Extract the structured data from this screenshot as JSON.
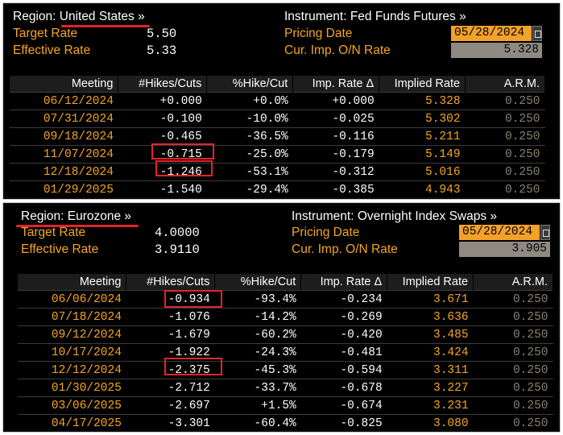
{
  "panels": [
    {
      "region_label": "Region:",
      "region_value": "United States",
      "region_chevron": "»",
      "instrument_label": "Instrument:",
      "instrument_value": "Fed Funds Futures",
      "instrument_chevron": "»",
      "target_label": "Target Rate",
      "target_value": "5.50",
      "effective_label": "Effective Rate",
      "effective_value": "5.33",
      "pricing_label": "Pricing Date",
      "pricing_value": "05/28/2024",
      "curimp_label": "Cur. Imp. O/N Rate",
      "curimp_value": "5.328",
      "headers": [
        "Meeting",
        "#Hikes/Cuts",
        "%Hike/Cut",
        "Imp. Rate Δ",
        "Implied Rate",
        "A.R.M."
      ],
      "rows": [
        [
          "06/12/2024",
          "+0.000",
          "+0.0%",
          "+0.000",
          "5.328",
          "0.250"
        ],
        [
          "07/31/2024",
          "-0.100",
          "-10.0%",
          "-0.025",
          "5.302",
          "0.250"
        ],
        [
          "09/18/2024",
          "-0.465",
          "-36.5%",
          "-0.116",
          "5.211",
          "0.250"
        ],
        [
          "11/07/2024",
          "-0.715",
          "-25.0%",
          "-0.179",
          "5.149",
          "0.250"
        ],
        [
          "12/18/2024",
          "-1.246",
          "-53.1%",
          "-0.312",
          "5.016",
          "0.250"
        ],
        [
          "01/29/2025",
          "-1.540",
          "-29.4%",
          "-0.385",
          "4.943",
          "0.250"
        ]
      ]
    },
    {
      "region_label": "Region:",
      "region_value": "Eurozone",
      "region_chevron": "»",
      "instrument_label": "Instrument:",
      "instrument_value": "Overnight Index Swaps",
      "instrument_chevron": "»",
      "target_label": "Target Rate",
      "target_value": "4.0000",
      "effective_label": "Effective Rate",
      "effective_value": "3.9110",
      "pricing_label": "Pricing Date",
      "pricing_value": "05/28/2024",
      "curimp_label": "Cur. Imp. O/N Rate",
      "curimp_value": "3.905",
      "headers": [
        "Meeting",
        "#Hikes/Cuts",
        "%Hike/Cut",
        "Imp. Rate Δ",
        "Implied Rate",
        "A.R.M."
      ],
      "rows": [
        [
          "06/06/2024",
          "-0.934",
          "-93.4%",
          "-0.234",
          "3.671",
          "0.250"
        ],
        [
          "07/18/2024",
          "-1.076",
          "-14.2%",
          "-0.269",
          "3.636",
          "0.250"
        ],
        [
          "09/12/2024",
          "-1.679",
          "-60.2%",
          "-0.420",
          "3.485",
          "0.250"
        ],
        [
          "10/17/2024",
          "-1.922",
          "-24.3%",
          "-0.481",
          "3.424",
          "0.250"
        ],
        [
          "12/12/2024",
          "-2.375",
          "-45.3%",
          "-0.594",
          "3.311",
          "0.250"
        ],
        [
          "01/30/2025",
          "-2.712",
          "-33.7%",
          "-0.678",
          "3.227",
          "0.250"
        ],
        [
          "03/06/2025",
          "-2.697",
          "+1.5%",
          "-0.674",
          "3.231",
          "0.250"
        ],
        [
          "04/17/2025",
          "-3.301",
          "-60.4%",
          "-0.825",
          "3.080",
          "0.250"
        ]
      ]
    }
  ],
  "colors": {
    "accent": "#f5a623",
    "highlight": "#e0242b",
    "panel_bg": "#000000"
  },
  "icons": {
    "date_picker": "calendar-icon"
  }
}
